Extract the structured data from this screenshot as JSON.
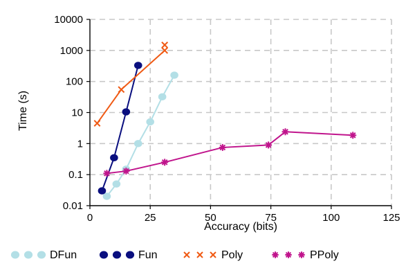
{
  "chart_data": {
    "type": "line",
    "title": "",
    "xlabel": "Accuracy (bits)",
    "ylabel": "Time (s)",
    "xlim": [
      0,
      125
    ],
    "ylim": [
      0.01,
      10000
    ],
    "yscale": "log",
    "grid": true,
    "legend_position": "bottom",
    "x_ticks": [
      0,
      25,
      50,
      75,
      100,
      125
    ],
    "x_tick_labels": [
      "0",
      "25",
      "50",
      "75",
      "100",
      "125"
    ],
    "y_ticks": [
      0.01,
      0.1,
      1,
      10,
      100,
      1000,
      10000
    ],
    "y_tick_labels": [
      "0.01",
      "0.1",
      "1",
      "10",
      "100",
      "1000",
      "10000"
    ],
    "series": [
      {
        "name": "DFun",
        "color": "#b3dfe6",
        "marker": "circle",
        "points": [
          [
            7,
            0.02
          ],
          [
            11,
            0.05
          ],
          [
            15,
            0.15
          ],
          [
            20,
            1.0
          ],
          [
            25,
            5.0
          ],
          [
            30,
            32
          ],
          [
            35,
            160
          ]
        ]
      },
      {
        "name": "Fun",
        "color": "#0a0f7f",
        "marker": "circle",
        "points": [
          [
            5,
            0.03
          ],
          [
            10,
            0.35
          ],
          [
            15,
            10.5
          ],
          [
            20,
            330
          ]
        ]
      },
      {
        "name": "Poly",
        "color": "#f05a14",
        "marker": "x",
        "points": [
          [
            3,
            4.5
          ],
          [
            13,
            55
          ],
          [
            31,
            1000
          ]
        ],
        "extra_markers": [
          [
            31,
            1500
          ]
        ]
      },
      {
        "name": "PPoly",
        "color": "#c0148c",
        "marker": "asterisk",
        "points": [
          [
            7,
            0.11
          ],
          [
            15,
            0.13
          ],
          [
            31,
            0.25
          ],
          [
            55,
            0.75
          ],
          [
            74,
            0.9
          ],
          [
            81,
            2.4
          ],
          [
            109,
            1.85
          ]
        ]
      }
    ]
  }
}
